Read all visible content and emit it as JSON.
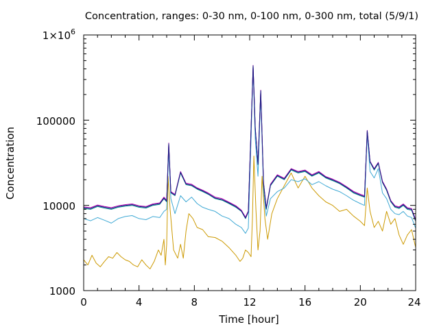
{
  "chart_data": {
    "type": "line",
    "title": "Concentration, ranges: 0-30 nm, 0-100 nm, 0-300 nm, total (5/9/1)",
    "xlabel": "Time [hour]",
    "ylabel": "Concentration",
    "xlim": [
      0,
      24
    ],
    "ylim": [
      1000,
      1000000
    ],
    "yscale": "log",
    "grid": false,
    "xticks": [
      0,
      4,
      8,
      12,
      16,
      20,
      24
    ],
    "xtick_labels": [
      "0",
      "4",
      "8",
      "12",
      "16",
      "20",
      "24"
    ],
    "yticks": [
      1000,
      10000,
      100000,
      1000000
    ],
    "ytick_labels": [
      "1000",
      "10000",
      "100000",
      "1×10"
    ],
    "ytick_top_superscript": "6",
    "series": [
      {
        "color": "#cc9900",
        "x": [
          0,
          0.3,
          0.6,
          0.9,
          1.2,
          1.5,
          1.8,
          2.1,
          2.4,
          2.7,
          3.0,
          3.3,
          3.6,
          3.9,
          4.2,
          4.5,
          4.8,
          5.1,
          5.4,
          5.6,
          5.8,
          5.9,
          6.0,
          6.1,
          6.25,
          6.5,
          6.8,
          7.0,
          7.2,
          7.4,
          7.6,
          7.9,
          8.2,
          8.6,
          9.0,
          9.5,
          10.0,
          10.5,
          11.0,
          11.3,
          11.5,
          11.7,
          11.9,
          12.1,
          12.2,
          12.3,
          12.45,
          12.6,
          12.75,
          12.9,
          13.1,
          13.3,
          13.6,
          14.0,
          14.5,
          15.0,
          15.5,
          16.0,
          16.5,
          17.0,
          17.5,
          18.0,
          18.5,
          19.0,
          19.5,
          20.0,
          20.3,
          20.5,
          20.7,
          21.0,
          21.3,
          21.6,
          21.9,
          22.2,
          22.5,
          22.8,
          23.1,
          23.4,
          23.7,
          24.0
        ],
        "values": [
          2300,
          2000,
          2600,
          2100,
          1900,
          2200,
          2500,
          2400,
          2800,
          2500,
          2300,
          2200,
          2000,
          1900,
          2300,
          2000,
          1800,
          2200,
          3000,
          2600,
          4000,
          2000,
          3500,
          22000,
          9000,
          3000,
          2400,
          3500,
          2400,
          5000,
          8000,
          7000,
          5500,
          5200,
          4300,
          4200,
          3800,
          3200,
          2600,
          2200,
          2400,
          3000,
          2800,
          2500,
          7000,
          38000,
          9000,
          3000,
          5000,
          22000,
          7000,
          4000,
          8000,
          12000,
          17000,
          24000,
          16000,
          22000,
          16000,
          13000,
          11000,
          10000,
          8500,
          9000,
          7500,
          6500,
          5800,
          16000,
          8500,
          5500,
          6500,
          5000,
          8500,
          6000,
          7000,
          4500,
          3500,
          4500,
          5200,
          3200
        ]
      },
      {
        "color": "#3da8d4",
        "x": [
          0,
          0.5,
          1.0,
          1.5,
          2.0,
          2.5,
          3.0,
          3.5,
          4.0,
          4.5,
          5.0,
          5.5,
          5.8,
          6.0,
          6.15,
          6.3,
          6.6,
          7.0,
          7.4,
          7.8,
          8.2,
          8.6,
          9.0,
          9.5,
          10.0,
          10.5,
          11.0,
          11.4,
          11.7,
          11.9,
          12.1,
          12.25,
          12.4,
          12.6,
          12.8,
          13.0,
          13.2,
          13.5,
          14.0,
          14.5,
          15.0,
          15.5,
          16.0,
          16.5,
          17.0,
          17.5,
          18.0,
          18.5,
          19.0,
          19.5,
          20.0,
          20.3,
          20.5,
          20.7,
          21.0,
          21.3,
          21.6,
          21.9,
          22.2,
          22.5,
          22.8,
          23.1,
          23.4,
          23.7,
          24.0
        ],
        "values": [
          7000,
          6600,
          7200,
          6700,
          6200,
          7000,
          7400,
          7600,
          7000,
          6800,
          7400,
          7200,
          8500,
          9000,
          45000,
          12000,
          8000,
          13000,
          11000,
          12500,
          10500,
          9500,
          9000,
          8500,
          7500,
          7000,
          6000,
          5500,
          4700,
          5400,
          60000,
          420000,
          60000,
          22000,
          200000,
          15000,
          7500,
          12000,
          14500,
          16000,
          20000,
          19000,
          20500,
          17500,
          19000,
          17000,
          15500,
          14500,
          13000,
          11500,
          10500,
          10000,
          70000,
          25000,
          21000,
          27000,
          14000,
          12000,
          9000,
          8000,
          7800,
          8500,
          7500,
          7200,
          5400
        ]
      },
      {
        "color": "#008b8b",
        "x": [
          0,
          0.5,
          1.0,
          1.5,
          2.0,
          2.5,
          3.0,
          3.5,
          4.0,
          4.5,
          5.0,
          5.5,
          5.8,
          6.0,
          6.15,
          6.3,
          6.6,
          7.0,
          7.4,
          7.8,
          8.2,
          8.6,
          9.0,
          9.5,
          10.0,
          10.5,
          11.0,
          11.4,
          11.7,
          11.9,
          12.1,
          12.25,
          12.4,
          12.6,
          12.8,
          13.0,
          13.2,
          13.5,
          14.0,
          14.5,
          15.0,
          15.5,
          16.0,
          16.5,
          17.0,
          17.5,
          18.0,
          18.5,
          19.0,
          19.5,
          20.0,
          20.3,
          20.5,
          20.7,
          21.0,
          21.3,
          21.6,
          21.9,
          22.2,
          22.5,
          22.8,
          23.1,
          23.4,
          23.7,
          24.0
        ],
        "values": [
          9200,
          9000,
          9700,
          9300,
          9000,
          9500,
          9800,
          10000,
          9500,
          9300,
          10000,
          10300,
          12000,
          11000,
          52000,
          14000,
          13000,
          24000,
          17500,
          17000,
          15500,
          14500,
          13500,
          12000,
          11500,
          10500,
          9500,
          8500,
          7000,
          8300,
          78000,
          430000,
          80000,
          30000,
          220000,
          18000,
          9000,
          17000,
          22000,
          20000,
          26000,
          24000,
          25000,
          22000,
          24000,
          21000,
          19500,
          18000,
          16000,
          14000,
          13000,
          12500,
          74000,
          32000,
          26000,
          31000,
          18500,
          15000,
          11000,
          9500,
          9200,
          10000,
          9000,
          8800,
          6500
        ]
      },
      {
        "color": "#b000b0",
        "x": [
          0,
          0.5,
          1.0,
          1.5,
          2.0,
          2.5,
          3.0,
          3.5,
          4.0,
          4.5,
          5.0,
          5.5,
          5.8,
          6.0,
          6.15,
          6.3,
          6.6,
          7.0,
          7.4,
          7.8,
          8.2,
          8.6,
          9.0,
          9.5,
          10.0,
          10.5,
          11.0,
          11.4,
          11.7,
          11.9,
          12.1,
          12.25,
          12.4,
          12.6,
          12.8,
          13.0,
          13.2,
          13.5,
          14.0,
          14.5,
          15.0,
          15.5,
          16.0,
          16.5,
          17.0,
          17.5,
          18.0,
          18.5,
          19.0,
          19.5,
          20.0,
          20.3,
          20.5,
          20.7,
          21.0,
          21.3,
          21.6,
          21.9,
          22.2,
          22.5,
          22.8,
          23.1,
          23.4,
          23.7,
          24.0
        ],
        "values": [
          9600,
          9400,
          10100,
          9700,
          9400,
          9900,
          10200,
          10400,
          9900,
          9700,
          10400,
          10700,
          12500,
          11500,
          54000,
          14500,
          13500,
          25000,
          18200,
          17700,
          16100,
          15100,
          14000,
          12500,
          12000,
          10900,
          9900,
          8800,
          7300,
          8600,
          80000,
          440000,
          82000,
          31000,
          225000,
          18700,
          9400,
          17700,
          22900,
          20800,
          27000,
          25000,
          26000,
          22900,
          25000,
          21800,
          20300,
          18700,
          16600,
          14600,
          13500,
          13000,
          76000,
          33000,
          27000,
          32000,
          19200,
          15600,
          11400,
          9900,
          9600,
          10400,
          9400,
          9200,
          6800
        ]
      },
      {
        "color": "#1a1a80",
        "x": [
          0,
          0.5,
          1.0,
          1.5,
          2.0,
          2.5,
          3.0,
          3.5,
          4.0,
          4.5,
          5.0,
          5.5,
          5.8,
          6.0,
          6.15,
          6.3,
          6.6,
          7.0,
          7.4,
          7.8,
          8.2,
          8.6,
          9.0,
          9.5,
          10.0,
          10.5,
          11.0,
          11.4,
          11.7,
          11.9,
          12.1,
          12.25,
          12.4,
          12.6,
          12.8,
          13.0,
          13.2,
          13.5,
          14.0,
          14.5,
          15.0,
          15.5,
          16.0,
          16.5,
          17.0,
          17.5,
          18.0,
          18.5,
          19.0,
          19.5,
          20.0,
          20.3,
          20.5,
          20.7,
          21.0,
          21.3,
          21.6,
          21.9,
          22.2,
          22.5,
          22.8,
          23.1,
          23.4,
          23.7,
          24.0
        ],
        "values": [
          9400,
          9200,
          9900,
          9500,
          9200,
          9700,
          10000,
          10200,
          9700,
          9500,
          10200,
          10500,
          12200,
          11200,
          53000,
          14200,
          13200,
          24500,
          17800,
          17300,
          15800,
          14800,
          13700,
          12200,
          11700,
          10700,
          9700,
          8600,
          7100,
          8400,
          79000,
          435000,
          81000,
          30500,
          222000,
          18300,
          9200,
          17300,
          22400,
          20400,
          26500,
          24500,
          25500,
          22400,
          24500,
          21400,
          19900,
          18300,
          16300,
          14300,
          13200,
          12700,
          75000,
          32500,
          26500,
          31500,
          18800,
          15300,
          11200,
          9700,
          9400,
          10200,
          9200,
          9000,
          6600
        ]
      }
    ]
  }
}
